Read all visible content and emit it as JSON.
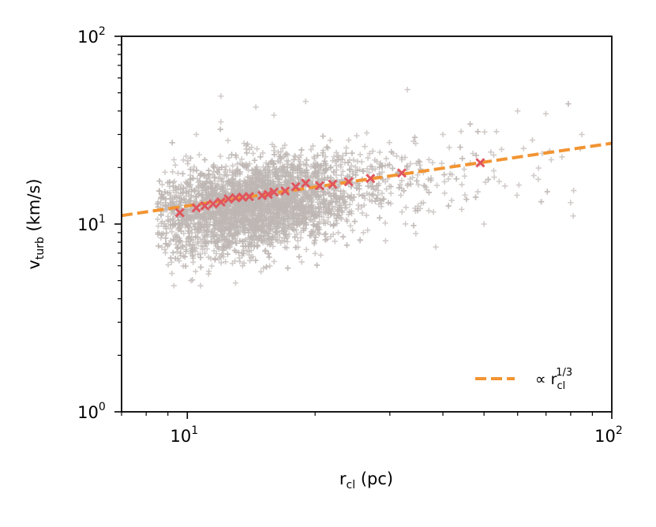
{
  "chart_data": {
    "type": "scatter",
    "title": "",
    "xlabel": {
      "base": "r",
      "sub": "cl",
      "unit": "(pc)"
    },
    "ylabel": {
      "base": "v",
      "sub": "turb",
      "unit": "(km/s)"
    },
    "x_scale": "log",
    "y_scale": "log",
    "xlim": [
      7,
      100
    ],
    "ylim": [
      1,
      100
    ],
    "x_ticks": [
      {
        "value": 10,
        "base": "10",
        "exp": "1"
      },
      {
        "value": 100,
        "base": "10",
        "exp": "2"
      }
    ],
    "y_ticks": [
      {
        "value": 1,
        "base": "10",
        "exp": "0"
      },
      {
        "value": 10,
        "base": "10",
        "exp": "1"
      },
      {
        "value": 100,
        "base": "10",
        "exp": "2"
      }
    ],
    "grid": false,
    "legend": {
      "placement": "lower-right",
      "entry": {
        "prefix": "∝ r",
        "sub": "cl",
        "sup": "1/3"
      }
    },
    "series": [
      {
        "kind": "cloud",
        "marker": "plus",
        "color": "#bdb6b4",
        "density_profile": {
          "points_estimate": 4000,
          "x_median": 14,
          "x_range": [
            8.5,
            88
          ],
          "y_median": 12.5,
          "y_range": [
            4.6,
            52
          ]
        },
        "points": [
          [
            8.6,
            15.0
          ],
          [
            9.0,
            10.5
          ],
          [
            9.3,
            22.0
          ],
          [
            9.6,
            8.2
          ],
          [
            10.0,
            12.0
          ],
          [
            10.2,
            5.0
          ],
          [
            10.5,
            30.0
          ],
          [
            10.8,
            16.0
          ],
          [
            11.0,
            7.0
          ],
          [
            11.5,
            13.5
          ],
          [
            12.0,
            35.0
          ],
          [
            12.5,
            9.5
          ],
          [
            13.0,
            18.0
          ],
          [
            13.5,
            6.0
          ],
          [
            14.0,
            25.0
          ],
          [
            15.0,
            11.0
          ],
          [
            16.0,
            38.0
          ],
          [
            17.0,
            14.0
          ],
          [
            18.0,
            7.5
          ],
          [
            20.0,
            20.0
          ],
          [
            22.0,
            12.0
          ],
          [
            24.0,
            28.0
          ],
          [
            26.0,
            9.0
          ],
          [
            28.0,
            16.0
          ],
          [
            32.0,
            22.0
          ],
          [
            33.0,
            52.0
          ],
          [
            36.0,
            13.0
          ],
          [
            40.0,
            30.0
          ],
          [
            45.0,
            18.0
          ],
          [
            50.0,
            10.0
          ],
          [
            55.0,
            25.0
          ],
          [
            60.0,
            40.0
          ],
          [
            65.0,
            28.0
          ],
          [
            72.0,
            22.0
          ],
          [
            80.0,
            13.0
          ],
          [
            85.0,
            30.0
          ],
          [
            9.3,
            4.7
          ],
          [
            12.0,
            48.0
          ],
          [
            14.5,
            42.0
          ],
          [
            19.0,
            45.0
          ]
        ]
      },
      {
        "kind": "binned",
        "marker": "x",
        "color": "#e0555e",
        "points": [
          [
            9.6,
            11.5
          ],
          [
            10.5,
            12.2
          ],
          [
            11.0,
            12.5
          ],
          [
            11.5,
            12.8
          ],
          [
            12.0,
            13.1
          ],
          [
            12.5,
            13.6
          ],
          [
            13.0,
            13.8
          ],
          [
            13.5,
            13.9
          ],
          [
            14.0,
            14.0
          ],
          [
            15.0,
            14.2
          ],
          [
            15.5,
            14.4
          ],
          [
            16.0,
            14.8
          ],
          [
            17.0,
            15.0
          ],
          [
            18.0,
            15.8
          ],
          [
            19.0,
            16.5
          ],
          [
            20.5,
            16.0
          ],
          [
            22.0,
            16.3
          ],
          [
            24.0,
            16.8
          ],
          [
            27.0,
            17.5
          ],
          [
            32.0,
            18.7
          ],
          [
            49.0,
            21.2
          ]
        ]
      },
      {
        "kind": "fit",
        "style": "dashed",
        "color": "#f29432",
        "slope": 0.3333,
        "anchor": [
          10,
          12.5
        ],
        "x_range": [
          7,
          100
        ]
      }
    ]
  }
}
